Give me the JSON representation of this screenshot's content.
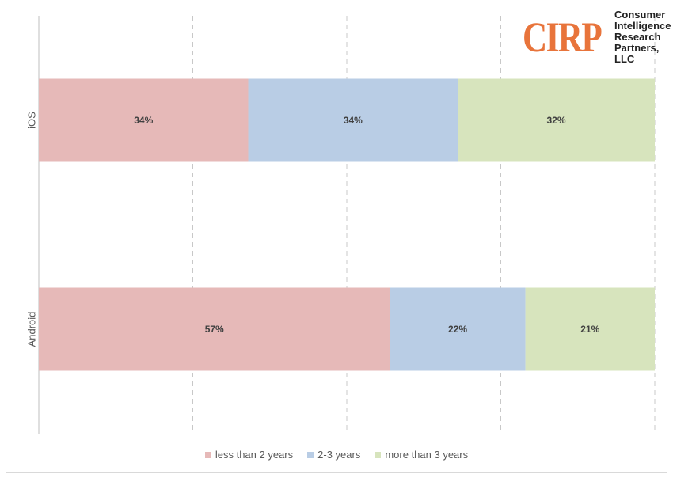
{
  "chart_data": {
    "type": "bar",
    "orientation": "horizontal",
    "stacked": "100%",
    "categories": [
      "iOS",
      "Android"
    ],
    "series": [
      {
        "name": "less than 2 years",
        "values": [
          34,
          57
        ],
        "color": "#e6b9b8"
      },
      {
        "name": "2-3 years",
        "values": [
          34,
          22
        ],
        "color": "#b9cde5"
      },
      {
        "name": "more than 3 years",
        "values": [
          32,
          21
        ],
        "color": "#d7e4bd"
      }
    ],
    "data_labels": [
      [
        "34%",
        "34%",
        "32%"
      ],
      [
        "57%",
        "22%",
        "21%"
      ]
    ],
    "xlim": [
      0,
      100
    ],
    "grid": "vertical dashed every 25%",
    "legend_position": "bottom",
    "title": "",
    "xlabel": "",
    "ylabel": ""
  },
  "logo": {
    "mark": "CIRP",
    "lines": [
      "Consumer",
      "Intelligence",
      "Research",
      "Partners, LLC"
    ],
    "color": "#e8743b"
  }
}
